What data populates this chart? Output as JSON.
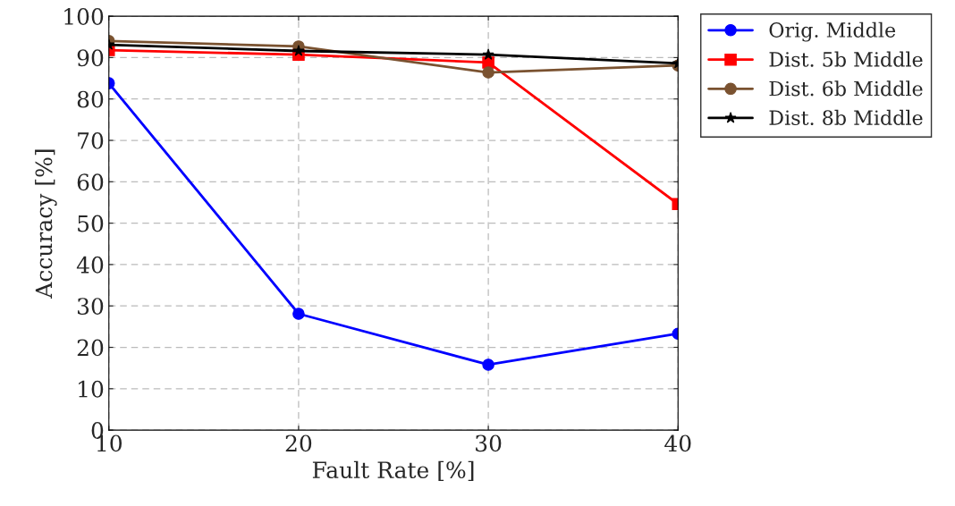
{
  "chart_data": {
    "type": "line",
    "xlabel": "Fault Rate [%]",
    "ylabel": "Accuracy [%]",
    "x": [
      10,
      20,
      30,
      40
    ],
    "series": [
      {
        "name": "Orig. Middle",
        "color": "#0000ff",
        "marker": "circle",
        "values": [
          83.8,
          28.1,
          15.8,
          23.3
        ]
      },
      {
        "name": "Dist. 5b Middle",
        "color": "#ff0000",
        "marker": "square",
        "values": [
          91.8,
          90.7,
          88.8,
          54.6
        ]
      },
      {
        "name": "Dist. 6b Middle",
        "color": "#7a5230",
        "marker": "circle",
        "values": [
          94.0,
          92.7,
          86.4,
          88.1
        ]
      },
      {
        "name": "Dist. 8b Middle",
        "color": "#000000",
        "marker": "star",
        "values": [
          93.1,
          91.6,
          90.7,
          88.6
        ]
      }
    ],
    "xlim": [
      10,
      40
    ],
    "xticks": [
      10,
      20,
      30,
      40
    ],
    "ylim": [
      0,
      100
    ],
    "yticks": [
      0,
      10,
      20,
      30,
      40,
      50,
      60,
      70,
      80,
      90,
      100
    ],
    "grid": true,
    "legend": "top right",
    "line_style": "solid"
  }
}
